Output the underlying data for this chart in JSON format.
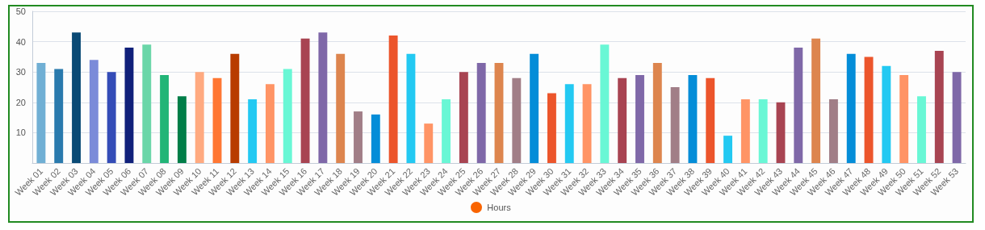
{
  "chart_data": {
    "type": "bar",
    "categories": [
      "Week 01",
      "Week 02",
      "Week 03",
      "Week 04",
      "Week 05",
      "Week 06",
      "Week 07",
      "Week 08",
      "Week 09",
      "Week 10",
      "Week 11",
      "Week 12",
      "Week 13",
      "Week 14",
      "Week 15",
      "Week 16",
      "Week 17",
      "Week 18",
      "Week 19",
      "Week 20",
      "Week 21",
      "Week 22",
      "Week 23",
      "Week 24",
      "Week 25",
      "Week 26",
      "Week 27",
      "Week 28",
      "Week 29",
      "Week 30",
      "Week 31",
      "Week 32",
      "Week 33",
      "Week 34",
      "Week 35",
      "Week 36",
      "Week 37",
      "Week 38",
      "Week 39",
      "Week 40",
      "Week 41",
      "Week 42",
      "Week 43",
      "Week 44",
      "Week 45",
      "Week 46",
      "Week 47",
      "Week 48",
      "Week 49",
      "Week 50",
      "Week 51",
      "Week 52",
      "Week 53"
    ],
    "series": [
      {
        "name": "Hours",
        "color": "#f96400",
        "values": [
          33,
          31,
          43,
          34,
          30,
          38,
          39,
          29,
          22,
          30,
          28,
          36,
          21,
          26,
          31,
          41,
          43,
          36,
          17,
          16,
          42,
          36,
          13,
          21,
          30,
          33,
          33,
          28,
          36,
          23,
          26,
          26,
          39,
          28,
          29,
          33,
          25,
          29,
          28,
          9,
          21,
          21,
          20,
          38,
          41,
          21,
          36,
          35,
          32,
          29,
          22,
          37,
          30
        ],
        "colors": [
          "#70afd4",
          "#2a7aad",
          "#0a4a75",
          "#7b8bd9",
          "#344cb7",
          "#10207a",
          "#6ad6a8",
          "#22b577",
          "#007e48",
          "#ffaa80",
          "#ff7733",
          "#b83c00",
          "#23c9f2",
          "#ff9465",
          "#69f7d5",
          "#a84452",
          "#7f68a8",
          "#dd854e",
          "#a17e87",
          "#048dd8",
          "#ec552b",
          "#23c9f2",
          "#ff9465",
          "#69f7d5",
          "#a84452",
          "#7f68a8",
          "#dd854e",
          "#a17e87",
          "#048dd8",
          "#ec552b",
          "#23c9f2",
          "#ff9465",
          "#69f7d5",
          "#a84452",
          "#7f68a8",
          "#dd854e",
          "#a17e87",
          "#048dd8",
          "#ec552b",
          "#23c9f2",
          "#ff9465",
          "#69f7d5",
          "#a84452",
          "#7f68a8",
          "#dd854e",
          "#a17e87",
          "#048dd8",
          "#ec552b",
          "#23c9f2",
          "#ff9465",
          "#69f7d5",
          "#a84452",
          "#7f68a8"
        ]
      }
    ],
    "ylim": [
      0,
      50
    ],
    "yticks": [
      {
        "value": 0,
        "label": null
      },
      10,
      20,
      30,
      40,
      50
    ],
    "grid": "y",
    "legend": "bottom"
  }
}
